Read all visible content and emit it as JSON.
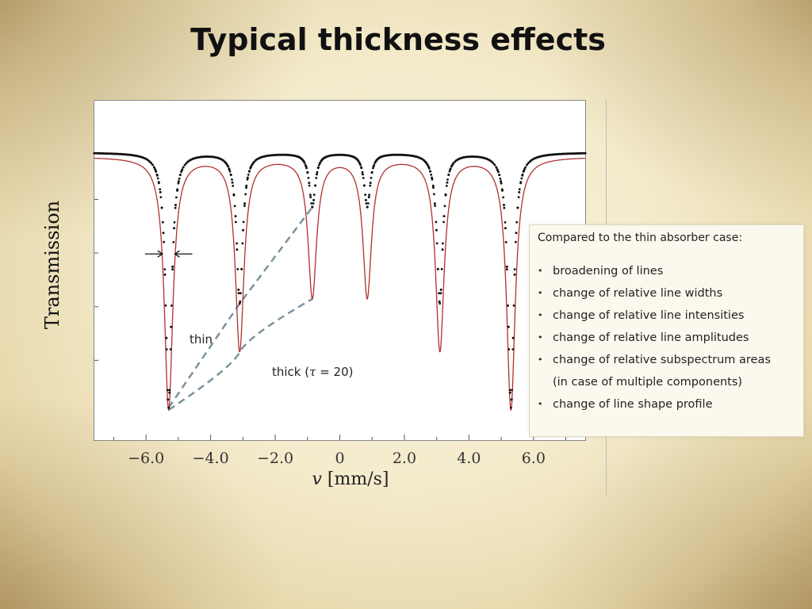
{
  "slide": {
    "title": "Typical thickness effects"
  },
  "chart_data": {
    "type": "line",
    "title": "",
    "xlabel_var": "v",
    "xlabel_unit": "[mm/s]",
    "ylabel": "Transmission",
    "xlim": [
      -7.6,
      7.6
    ],
    "ylim": [
      0.0,
      1.05
    ],
    "x_ticks": [
      -6.0,
      -4.0,
      -2.0,
      0,
      2.0,
      4.0,
      6.0
    ],
    "x_tick_labels": [
      "−6.0",
      "−4.0",
      "−2.0",
      "0",
      "2.0",
      "4.0",
      "6.0"
    ],
    "line_positions": [
      -5.3,
      -3.1,
      -0.85,
      0.85,
      3.1,
      5.3
    ],
    "series": [
      {
        "key": "thin",
        "style": "dots",
        "color": "#111111",
        "baseline": 0.975,
        "depths": [
          0.95,
          0.56,
          0.2,
          0.2,
          0.56,
          0.95
        ],
        "hwhm": 0.11
      },
      {
        "key": "thick",
        "style": "line",
        "color": "#b03030",
        "baseline": 0.96,
        "depths": [
          0.94,
          0.72,
          0.52,
          0.52,
          0.72,
          0.94
        ],
        "hwhm": 0.16
      }
    ],
    "annotations": {
      "thin_label": "thin",
      "thick_label_prefix": "thick (",
      "thick_tau_symbol": "τ",
      "thick_label_suffix": " = 20)"
    },
    "colors": {
      "guide": "#7a939e",
      "axis": "#555555",
      "tick_label": "#333333"
    }
  },
  "info_box": {
    "heading": "Compared to the thin absorber case:",
    "bullet_symbol": "•",
    "items": [
      "broadening of lines",
      "change of relative line widths",
      "change of relative line intensities",
      "change of relative line amplitudes",
      "change of relative subspectrum areas",
      "change of line shape profile"
    ],
    "item5_note": "(in case of multiple components)"
  }
}
